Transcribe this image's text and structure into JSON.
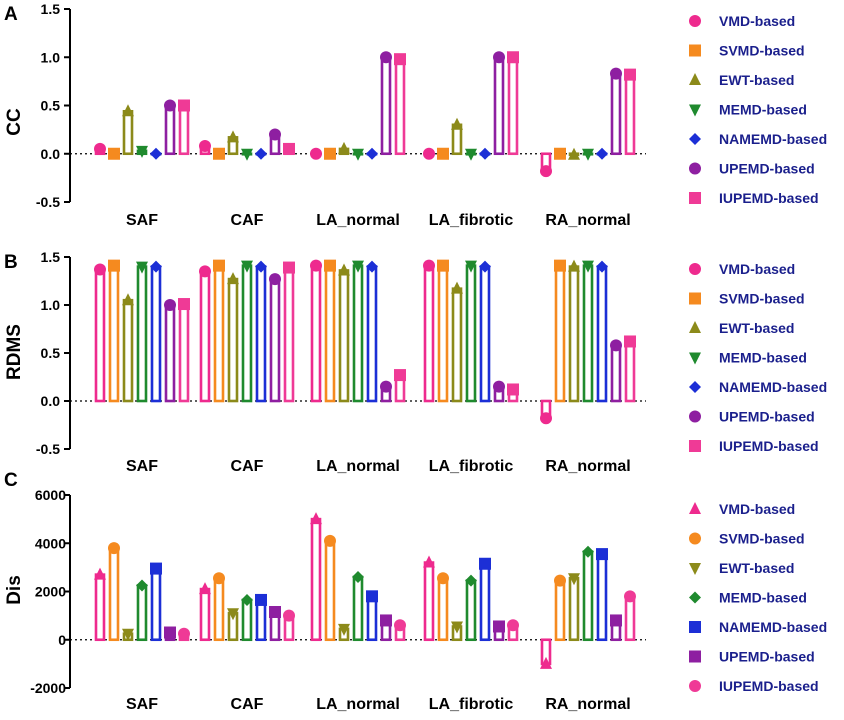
{
  "chart_data": [
    {
      "panel_label": "A",
      "type": "bar",
      "ylabel": "CC",
      "ylim": [
        -0.5,
        1.5
      ],
      "yticks": [
        -0.5,
        0.0,
        0.5,
        1.0,
        1.5
      ],
      "ytick_labels": [
        "-0.5",
        "0.0",
        "0.5",
        "1.0",
        "1.5"
      ],
      "categories": [
        "SAF",
        "CAF",
        "LA_normal",
        "LA_fibrotic",
        "RA_normal"
      ],
      "series": [
        {
          "name": "VMD-based",
          "color": "#ee2a8e",
          "marker": "circle",
          "values": [
            0.05,
            0.08,
            0.0,
            0.0,
            -0.18
          ]
        },
        {
          "name": "SVMD-based",
          "color": "#f58a1f",
          "marker": "square",
          "values": [
            0.0,
            0.0,
            0.0,
            0.0,
            0.0
          ]
        },
        {
          "name": "EWT-based",
          "color": "#8c8a1a",
          "marker": "triangle-up",
          "values": [
            0.44,
            0.17,
            0.05,
            0.3,
            -0.01
          ]
        },
        {
          "name": "MEMD-based",
          "color": "#1f8a2e",
          "marker": "triangle-down",
          "values": [
            0.03,
            0.0,
            0.0,
            0.0,
            0.0
          ]
        },
        {
          "name": "NAMEMD-based",
          "color": "#1c2fd6",
          "marker": "diamond",
          "values": [
            0.0,
            0.0,
            0.0,
            0.0,
            0.0
          ]
        },
        {
          "name": "UPEMD-based",
          "color": "#8e1fa1",
          "marker": "circle",
          "values": [
            0.5,
            0.2,
            1.0,
            1.0,
            0.83
          ]
        },
        {
          "name": "IUPEMD-based",
          "color": "#ef3a96",
          "marker": "square",
          "values": [
            0.5,
            0.05,
            0.98,
            1.0,
            0.82
          ]
        }
      ]
    },
    {
      "panel_label": "B",
      "type": "bar",
      "ylabel": "RDMS",
      "ylim": [
        -0.5,
        1.5
      ],
      "yticks": [
        -0.5,
        0.0,
        0.5,
        1.0,
        1.5
      ],
      "ytick_labels": [
        "-0.5",
        "0.0",
        "0.5",
        "1.0",
        "1.5"
      ],
      "categories": [
        "SAF",
        "CAF",
        "LA_normal",
        "LA_fibrotic",
        "RA_normal"
      ],
      "series": [
        {
          "name": "VMD-based",
          "color": "#ee2a8e",
          "marker": "circle",
          "values": [
            1.37,
            1.35,
            1.41,
            1.41,
            -0.18
          ]
        },
        {
          "name": "SVMD-based",
          "color": "#f58a1f",
          "marker": "square",
          "values": [
            1.41,
            1.41,
            1.41,
            1.41,
            1.41
          ]
        },
        {
          "name": "EWT-based",
          "color": "#8c8a1a",
          "marker": "triangle-up",
          "values": [
            1.05,
            1.27,
            1.36,
            1.17,
            1.4
          ]
        },
        {
          "name": "MEMD-based",
          "color": "#1f8a2e",
          "marker": "triangle-down",
          "values": [
            1.4,
            1.41,
            1.41,
            1.41,
            1.41
          ]
        },
        {
          "name": "NAMEMD-based",
          "color": "#1c2fd6",
          "marker": "diamond",
          "values": [
            1.4,
            1.4,
            1.4,
            1.4,
            1.4
          ]
        },
        {
          "name": "UPEMD-based",
          "color": "#8e1fa1",
          "marker": "circle",
          "values": [
            1.0,
            1.27,
            0.15,
            0.15,
            0.58
          ]
        },
        {
          "name": "IUPEMD-based",
          "color": "#ef3a96",
          "marker": "square",
          "values": [
            1.01,
            1.39,
            0.27,
            0.12,
            0.62
          ]
        }
      ]
    },
    {
      "panel_label": "C",
      "type": "bar",
      "ylabel": "Dis",
      "ylim": [
        -2000,
        6000
      ],
      "yticks": [
        -2000,
        0,
        2000,
        4000,
        6000
      ],
      "ytick_labels": [
        "-2000",
        "0",
        "2000",
        "4000",
        "6000"
      ],
      "categories": [
        "SAF",
        "CAF",
        "LA_normal",
        "LA_fibrotic",
        "RA_normal"
      ],
      "series": [
        {
          "name": "VMD-based",
          "color": "#ee2a8e",
          "marker": "triangle-up",
          "values": [
            2700,
            2100,
            5000,
            3200,
            -1000
          ]
        },
        {
          "name": "SVMD-based",
          "color": "#f58a1f",
          "marker": "circle",
          "values": [
            3800,
            2550,
            4100,
            2550,
            2450
          ]
        },
        {
          "name": "EWT-based",
          "color": "#8c8a1a",
          "marker": "triangle-down",
          "values": [
            250,
            1100,
            450,
            550,
            2550
          ]
        },
        {
          "name": "MEMD-based",
          "color": "#1f8a2e",
          "marker": "diamond",
          "values": [
            2250,
            1650,
            2600,
            2450,
            3650
          ]
        },
        {
          "name": "NAMEMD-based",
          "color": "#1c2fd6",
          "marker": "square",
          "values": [
            2950,
            1650,
            1800,
            3150,
            3550
          ]
        },
        {
          "name": "UPEMD-based",
          "color": "#8e1fa1",
          "marker": "square",
          "values": [
            300,
            1150,
            800,
            550,
            800
          ]
        },
        {
          "name": "IUPEMD-based",
          "color": "#ef3a96",
          "marker": "circle",
          "values": [
            250,
            1000,
            600,
            600,
            1800
          ]
        }
      ]
    }
  ]
}
